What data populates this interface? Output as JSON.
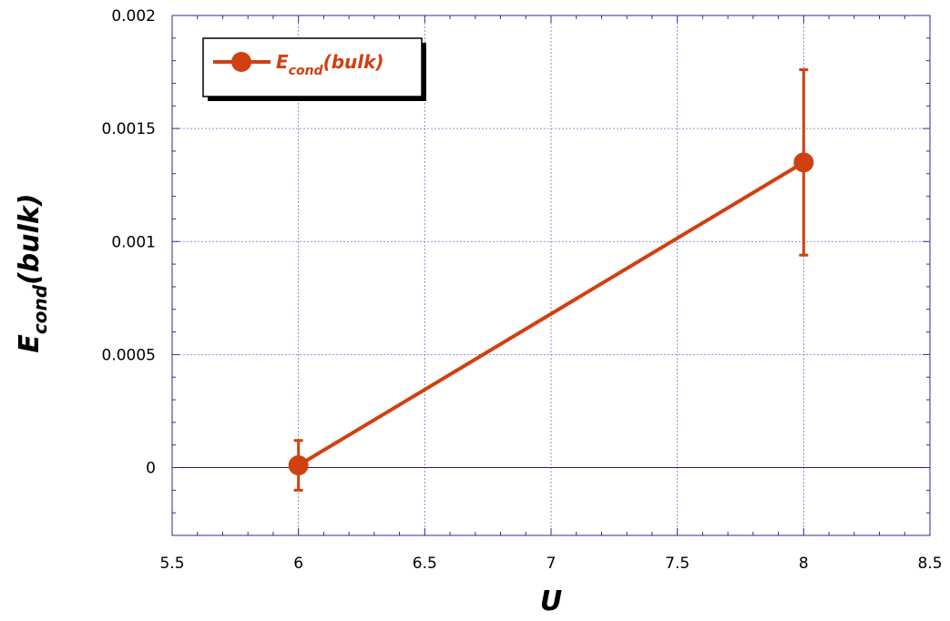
{
  "chart_data": {
    "type": "line",
    "xlabel": "U",
    "ylabel": {
      "main": "E",
      "sub": "cond",
      "suffix": "(bulk)"
    },
    "xlim": [
      5.5,
      8.5
    ],
    "ylim": [
      -0.0003,
      0.002
    ],
    "x_ticks": [
      5.5,
      6,
      6.5,
      7,
      7.5,
      8,
      8.5
    ],
    "x_tick_labels": [
      "5.5",
      "6",
      "6.5",
      "7",
      "7.5",
      "8",
      "8.5"
    ],
    "y_ticks": [
      0,
      0.0005,
      0.001,
      0.0015,
      0.002
    ],
    "y_tick_labels": [
      "0",
      "0.0005",
      "0.001",
      "0.0015",
      "0.002"
    ],
    "grid": true,
    "zero_line": true,
    "legend_position": "top-left",
    "series": [
      {
        "name": {
          "main": "E",
          "sub": "cond",
          "suffix": "(bulk)"
        },
        "color": "#d14010",
        "x": [
          6,
          8
        ],
        "y": [
          1e-05,
          0.00135
        ],
        "err_low": [
          0.00011,
          0.00041
        ],
        "err_high": [
          0.00011,
          0.00041
        ]
      }
    ]
  }
}
